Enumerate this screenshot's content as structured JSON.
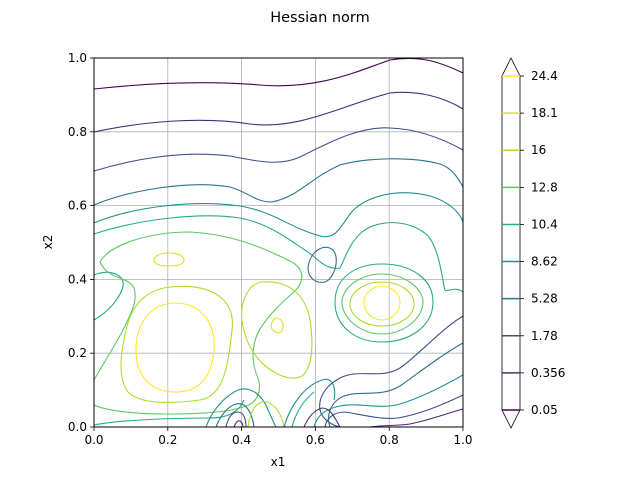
{
  "chart_data": {
    "type": "contour",
    "title": "Hessian norm",
    "xlabel": "x1",
    "ylabel": "x2",
    "xlim": [
      0,
      1
    ],
    "ylim": [
      0,
      1
    ],
    "xticks": [
      "0.0",
      "0.2",
      "0.4",
      "0.6",
      "0.8",
      "1.0"
    ],
    "yticks": [
      "0.0",
      "0.2",
      "0.4",
      "0.6",
      "0.8",
      "1.0"
    ],
    "grid": true,
    "colorbar": {
      "levels": [
        "0.05",
        "0.356",
        "1.78",
        "5.28",
        "8.62",
        "10.4",
        "12.8",
        "16",
        "18.1",
        "24.4"
      ],
      "extend": "both",
      "colormap": "viridis",
      "colors": [
        "#440154",
        "#472c7a",
        "#3b518b",
        "#2c718e",
        "#21908d",
        "#27ad81",
        "#5cc863",
        "#aadc32",
        "#dde318",
        "#fde725"
      ]
    }
  }
}
